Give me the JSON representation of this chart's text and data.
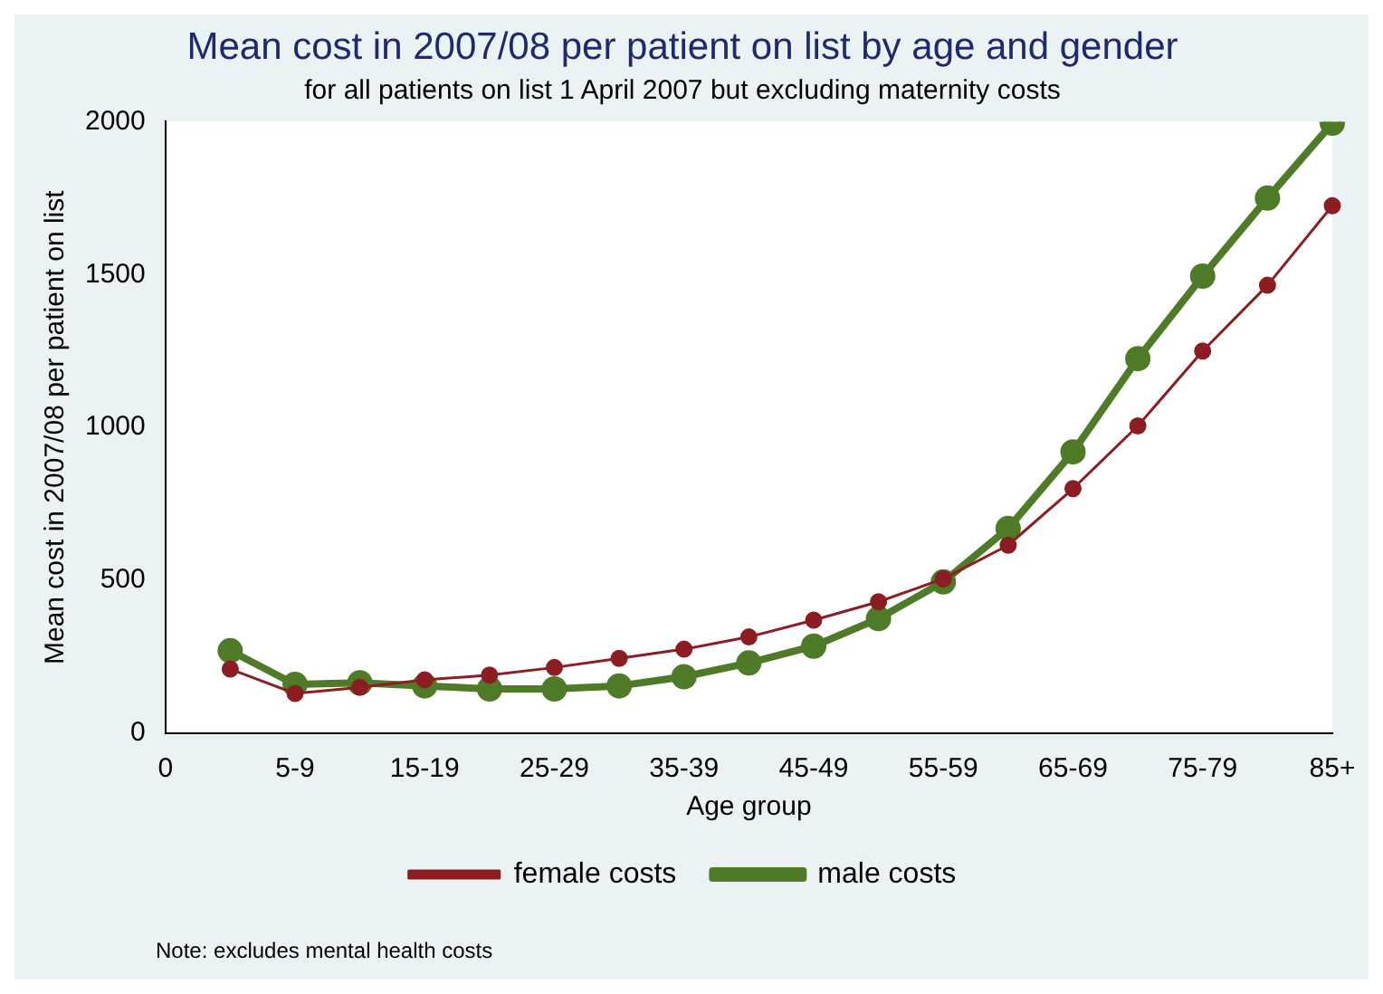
{
  "chart_data": {
    "type": "line",
    "title": "Mean cost in 2007/08 per patient on list by age and gender",
    "subtitle": "for all patients on list 1 April 2007 but excluding maternity costs",
    "xlabel": "Age group",
    "ylabel": "Mean cost in 2007/08 per patient on list",
    "categories": [
      "0",
      null,
      "5-9",
      null,
      "15-19",
      null,
      "25-29",
      null,
      "35-39",
      null,
      "45-49",
      null,
      "55-59",
      null,
      "65-69",
      null,
      "75-79",
      null,
      "85+"
    ],
    "ylim": [
      0,
      2000
    ],
    "yticks": [
      0,
      500,
      1000,
      1500,
      2000
    ],
    "series": [
      {
        "name": "female costs",
        "color": "#8c1d23",
        "values": [
          null,
          210,
          130,
          150,
          175,
          190,
          215,
          245,
          275,
          315,
          370,
          430,
          505,
          615,
          800,
          1005,
          1250,
          1465,
          1725
        ]
      },
      {
        "name": "male costs",
        "color": "#4f7a28",
        "values": [
          null,
          270,
          160,
          165,
          155,
          145,
          145,
          155,
          185,
          230,
          285,
          375,
          495,
          670,
          920,
          1225,
          1495,
          1750,
          1995
        ]
      }
    ],
    "marker": "circle",
    "line_style": "solid",
    "grid": false,
    "legend": "bottom",
    "annotations": [
      "Note: excludes mental health costs"
    ]
  }
}
